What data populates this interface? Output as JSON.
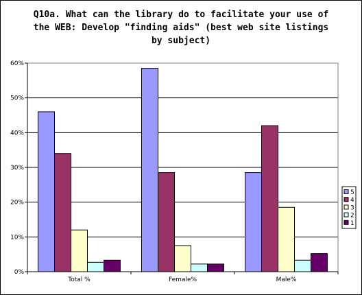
{
  "chart_data": {
    "type": "bar",
    "title": "Q10a.  What can the library do to facilitate your use of the WEB:  Develop \"finding aids\" (best web site listings by subject)",
    "title_lines": [
      "Q10a.  What can the library do to facilitate your use of",
      "the WEB:  Develop \"finding aids\" (best web site listings",
      "by subject)"
    ],
    "categories": [
      "Total %",
      "Female%",
      "Male%"
    ],
    "ylim": [
      0,
      0.6
    ],
    "y_ticks": [
      {
        "value": 0.0,
        "label": "0%"
      },
      {
        "value": 0.1,
        "label": "10%"
      },
      {
        "value": 0.2,
        "label": "20%"
      },
      {
        "value": 0.3,
        "label": "30%"
      },
      {
        "value": 0.4,
        "label": "40%"
      },
      {
        "value": 0.5,
        "label": "50%"
      },
      {
        "value": 0.6,
        "label": "60%"
      }
    ],
    "grid": true,
    "legend_position": "right",
    "series": [
      {
        "name": "5",
        "color": "#9999ff",
        "values": [
          0.46,
          0.585,
          0.285
        ]
      },
      {
        "name": "4",
        "color": "#993366",
        "values": [
          0.34,
          0.285,
          0.42
        ]
      },
      {
        "name": "3",
        "color": "#ffffcc",
        "values": [
          0.12,
          0.075,
          0.185
        ]
      },
      {
        "name": "2",
        "color": "#ccffff",
        "values": [
          0.027,
          0.022,
          0.033
        ]
      },
      {
        "name": "1",
        "color": "#660066",
        "values": [
          0.033,
          0.022,
          0.052
        ]
      }
    ]
  }
}
